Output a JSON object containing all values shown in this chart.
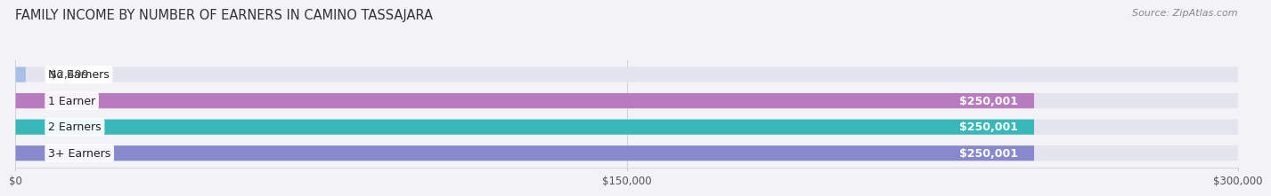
{
  "title": "FAMILY INCOME BY NUMBER OF EARNERS IN CAMINO TASSAJARA",
  "source": "Source: ZipAtlas.com",
  "categories": [
    "No Earners",
    "1 Earner",
    "2 Earners",
    "3+ Earners"
  ],
  "values": [
    2499,
    250001,
    250001,
    250001
  ],
  "bar_colors": [
    "#a8c0e8",
    "#b87bbf",
    "#38b8b8",
    "#8888cc"
  ],
  "label_colors": [
    "#444444",
    "#ffffff",
    "#ffffff",
    "#ffffff"
  ],
  "value_labels": [
    "$2,499",
    "$250,001",
    "$250,001",
    "$250,001"
  ],
  "xlim": [
    0,
    300000
  ],
  "xticks": [
    0,
    150000,
    300000
  ],
  "xtick_labels": [
    "$0",
    "$150,000",
    "$300,000"
  ],
  "bg_color": "#f2f2f7",
  "bar_bg_color": "#e4e4ee",
  "title_fontsize": 10.5,
  "source_fontsize": 8,
  "label_fontsize": 9,
  "value_fontsize": 9
}
